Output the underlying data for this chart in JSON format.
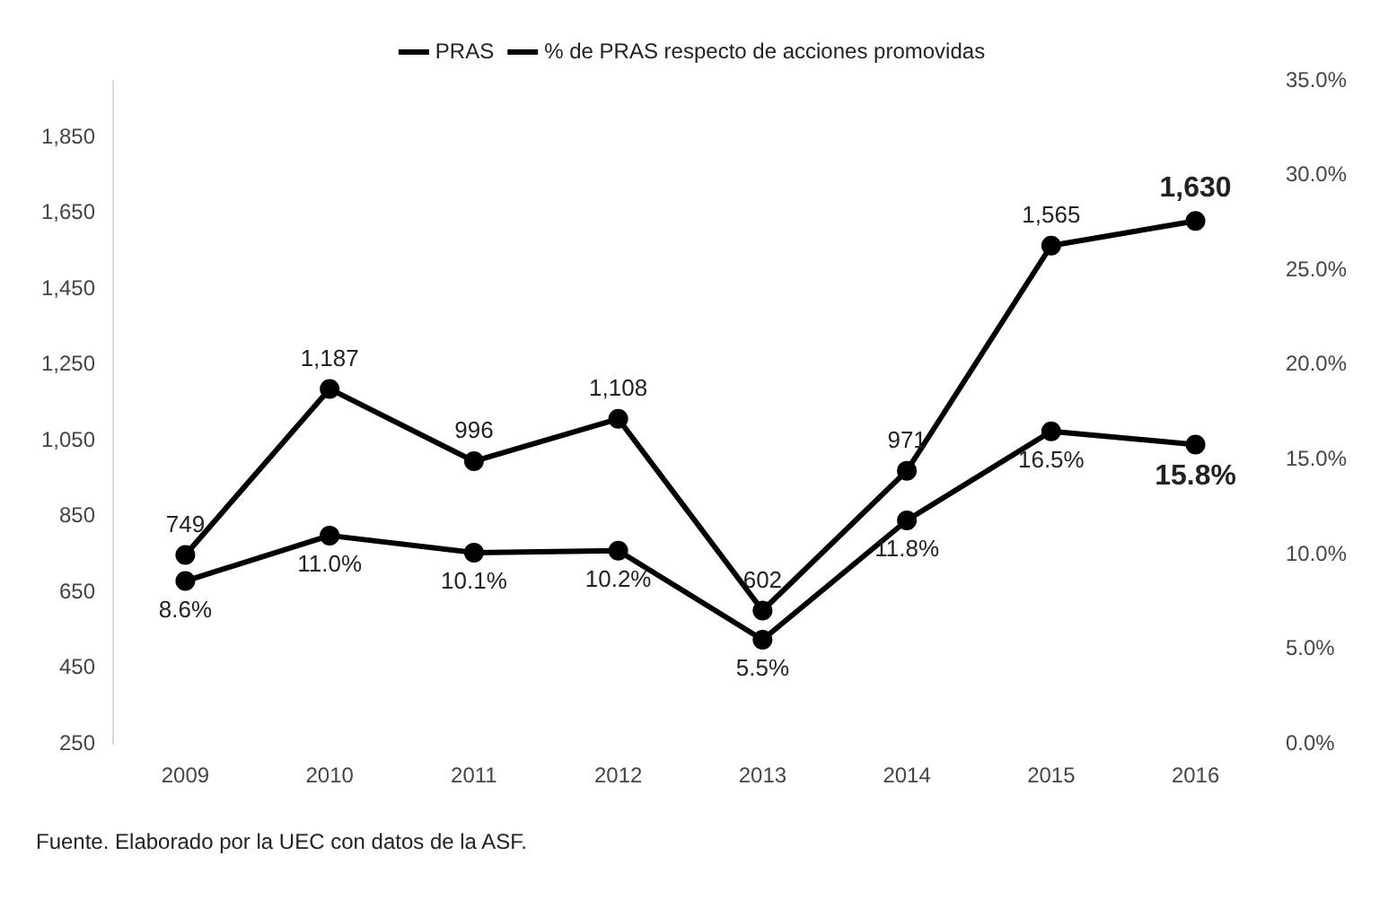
{
  "chart_data": {
    "type": "line",
    "categories": [
      "2009",
      "2010",
      "2011",
      "2012",
      "2013",
      "2014",
      "2015",
      "2016"
    ],
    "series": [
      {
        "name": "PRAS",
        "color": "#000000",
        "values": [
          749,
          1187,
          996,
          1108,
          602,
          971,
          1565,
          1630
        ],
        "value_labels": [
          "749",
          "1,187",
          "996",
          "1,108",
          "602",
          "971",
          "1,565",
          "1,630"
        ]
      },
      {
        "name": "% de PRAS respecto de acciones promovidas",
        "color": "#000000",
        "axis": "y2",
        "values": [
          8.6,
          11.0,
          10.1,
          10.2,
          5.5,
          11.8,
          16.5,
          15.8
        ],
        "value_labels": [
          "8.6%",
          "11.0%",
          "10.1%",
          "10.2%",
          "5.5%",
          "11.8%",
          "16.5%",
          "15.8%"
        ]
      }
    ],
    "ylim": [
      250,
      2000
    ],
    "yticks": [
      {
        "value": 250,
        "label": "250"
      },
      {
        "value": 450,
        "label": "450"
      },
      {
        "value": 650,
        "label": "650"
      },
      {
        "value": 850,
        "label": "850"
      },
      {
        "value": 1050,
        "label": "1,050"
      },
      {
        "value": 1250,
        "label": "1,250"
      },
      {
        "value": 1450,
        "label": "1,450"
      },
      {
        "value": 1650,
        "label": "1,650"
      },
      {
        "value": 1850,
        "label": "1,850"
      }
    ],
    "y2lim": [
      0,
      35
    ],
    "y2ticks": [
      {
        "value": 0,
        "label": "0.0%"
      },
      {
        "value": 5,
        "label": "5.0%"
      },
      {
        "value": 10,
        "label": "10.0%"
      },
      {
        "value": 15,
        "label": "15.0%"
      },
      {
        "value": 20,
        "label": "20.0%"
      },
      {
        "value": 25,
        "label": "25.0%"
      },
      {
        "value": 30,
        "label": "30.0%"
      },
      {
        "value": 35,
        "label": "35.0%"
      }
    ],
    "legend": "top",
    "grid": false,
    "marker": "circle",
    "line_style": "solid",
    "annotations": [
      "Fuente. Elaborado por la UEC con datos de la ASF."
    ]
  }
}
